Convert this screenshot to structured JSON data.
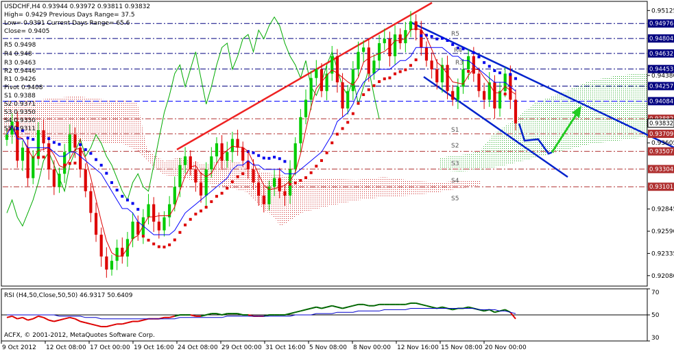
{
  "header": {
    "symbol_line": "USDCHF,H4  0.93944 0.93972 0.93811 0.93832",
    "lines": [
      "High= 0.9429    Previous Days Range= 37.5",
      "Low= 0.9391     Current Days Range= 65.6",
      "Close= 0.9405"
    ]
  },
  "pivot_labels": [
    "R5 0.9498",
    "R4 0.948",
    "R3 0.9463",
    "R2 0.9446",
    "R1 0.9426",
    "Pivot 0.9408",
    "S1 0.9388",
    "S2 0.9371",
    "S3 0.9350",
    "S4 0.9330",
    "S5 0.9311"
  ],
  "right_pivot_labels": [
    "R5",
    "R4",
    "R3",
    "S1",
    "S2",
    "S3",
    "S4",
    "S5"
  ],
  "copyright": "ACFX, © 2001-2012, MetaQuotes Software Corp.",
  "rsi_label": "RSI (H4,50,Close,50,50) 46.9317 50.6409",
  "colors": {
    "up": "#00cc00",
    "down": "#dd0000",
    "trend_up": "#ee2222",
    "channel": "#0022cc",
    "arrow": "#22cc22",
    "bull_line": "#00aa00",
    "blue": "#0000ff"
  },
  "chart_data": [
    {
      "type": "candlestick",
      "title": "USDCHF,H4",
      "ylim": [
        0.9196,
        0.9523
      ],
      "y_ticks": [
        "0.95125",
        "0.94380",
        "0.93605",
        "0.92845",
        "0.92590",
        "0.92335",
        "0.92080"
      ],
      "x_labels": [
        "9 Oct 2012",
        "12 Oct 08:00",
        "17 Oct 00:00",
        "19 Oct 16:00",
        "24 Oct 08:00",
        "29 Oct 00:00",
        "31 Oct 16:00",
        "5 Nov 08:00",
        "8 Nov 00:00",
        "12 Nov 16:00",
        "15 Nov 08:00",
        "20 Nov 00:00"
      ],
      "levels": [
        {
          "label": "0.94976",
          "value": 0.94976,
          "color": "#000080",
          "style": "dashdot"
        },
        {
          "label": "0.94804",
          "value": 0.94804,
          "color": "#000080",
          "style": "dashdot"
        },
        {
          "label": "0.94632",
          "value": 0.94632,
          "color": "#000080",
          "style": "dashdot"
        },
        {
          "label": "0.94453",
          "value": 0.94453,
          "color": "#000080",
          "style": "dashdot"
        },
        {
          "label": "0.94257",
          "value": 0.94257,
          "color": "#000080",
          "style": "dashdot"
        },
        {
          "label": "0.94084",
          "value": 0.94084,
          "color": "#0000ff",
          "style": "dash"
        },
        {
          "label": "0.93882",
          "value": 0.93882,
          "color": "#b03030",
          "style": "dashdot"
        },
        {
          "label": "0.93709",
          "value": 0.93709,
          "color": "#b03030",
          "style": "dashdot"
        },
        {
          "label": "0.93507",
          "value": 0.93507,
          "color": "#b03030",
          "style": "dashdot"
        },
        {
          "label": "0.93304",
          "value": 0.93304,
          "color": "#b03030",
          "style": "dashdot"
        },
        {
          "label": "0.93101",
          "value": 0.93101,
          "color": "#b03030",
          "style": "dashdot"
        }
      ],
      "last_price": {
        "label": "0.93832",
        "value": 0.93832
      },
      "closes": [
        0.937,
        0.9385,
        0.934,
        0.9355,
        0.932,
        0.9345,
        0.9375,
        0.936,
        0.933,
        0.931,
        0.9325,
        0.935,
        0.937,
        0.9355,
        0.933,
        0.9305,
        0.928,
        0.9255,
        0.923,
        0.9215,
        0.9225,
        0.924,
        0.923,
        0.925,
        0.927,
        0.9255,
        0.9275,
        0.929,
        0.927,
        0.926,
        0.9275,
        0.929,
        0.931,
        0.9335,
        0.9345,
        0.933,
        0.9315,
        0.93,
        0.933,
        0.9345,
        0.936,
        0.934,
        0.935,
        0.9365,
        0.9355,
        0.934,
        0.933,
        0.9315,
        0.93,
        0.929,
        0.931,
        0.932,
        0.9305,
        0.93,
        0.933,
        0.936,
        0.939,
        0.941,
        0.9435,
        0.9445,
        0.942,
        0.944,
        0.946,
        0.943,
        0.94,
        0.942,
        0.9445,
        0.9465,
        0.947,
        0.944,
        0.9455,
        0.9475,
        0.948,
        0.946,
        0.9485,
        0.9475,
        0.949,
        0.95,
        0.949,
        0.947,
        0.9455,
        0.9445,
        0.943,
        0.945,
        0.942,
        0.941,
        0.9425,
        0.9445,
        0.946,
        0.944,
        0.942,
        0.941,
        0.943,
        0.94,
        0.942,
        0.944,
        0.941,
        0.9383
      ],
      "rsi": {
        "series": [
          {
            "name": "RSI 50",
            "values": [
              48,
              49,
              47,
              48,
              46,
              47,
              49,
              48,
              46,
              45,
              46,
              47,
              48,
              47,
              45,
              44,
              43,
              42,
              41,
              41,
              42,
              43,
              43,
              44,
              45,
              45,
              46,
              47,
              47,
              47,
              48,
              48,
              49,
              50,
              50,
              50,
              49,
              49,
              50,
              51,
              51,
              50,
              51,
              51,
              51,
              50,
              50,
              49,
              49,
              49,
              50,
              50,
              50,
              50,
              51,
              52,
              53,
              54,
              55,
              56,
              55,
              56,
              57,
              56,
              55,
              56,
              57,
              58,
              58,
              57,
              57,
              58,
              58,
              58,
              58,
              58,
              58,
              59,
              59,
              58,
              57,
              56,
              55,
              56,
              55,
              54,
              55,
              55,
              56,
              55,
              54,
              53,
              54,
              52,
              53,
              54,
              52,
              47
            ]
          },
          {
            "name": "MA",
            "values": [
              50,
              50,
              50,
              50,
              50,
              50,
              50,
              50,
              50,
              50,
              49,
              49,
              49,
              49,
              49,
              48,
              48,
              48,
              47,
              47,
              47,
              47,
              47,
              47,
              47,
              47,
              47,
              47,
              47,
              47,
              47,
              47,
              47,
              48,
              48,
              48,
              48,
              48,
              48,
              48,
              48,
              48,
              49,
              49,
              49,
              49,
              49,
              49,
              49,
              49,
              49,
              49,
              49,
              49,
              49,
              50,
              50,
              50,
              50,
              51,
              51,
              51,
              51,
              52,
              52,
              52,
              52,
              53,
              53,
              53,
              53,
              53,
              54,
              54,
              54,
              54,
              54,
              55,
              55,
              55,
              55,
              55,
              55,
              55,
              55,
              55,
              55,
              55,
              55,
              55,
              54,
              54,
              54,
              54,
              53,
              53,
              52,
              51
            ]
          }
        ],
        "ylim": [
          30,
          70
        ],
        "y_ticks": [
          "70",
          "50",
          "30"
        ]
      }
    }
  ]
}
